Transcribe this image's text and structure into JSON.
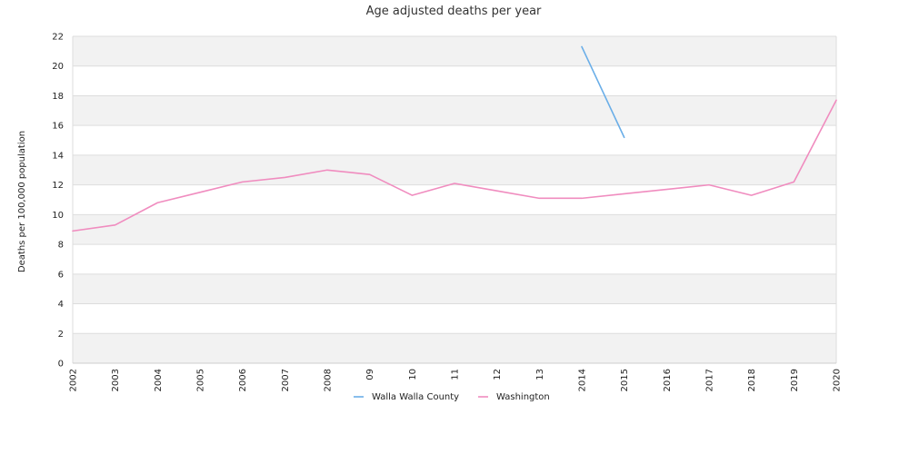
{
  "chart_data": {
    "type": "line",
    "title": "Age adjusted deaths per year",
    "ylabel": "Deaths per 100,000 population",
    "xlabel": "",
    "x": [
      "2002",
      "2003",
      "2004",
      "2005",
      "2006",
      "2007",
      "2008",
      "09",
      "10",
      "11",
      "12",
      "13",
      "2014",
      "2015",
      "2016",
      "2017",
      "2018",
      "2019",
      "2020"
    ],
    "yticks": [
      0,
      2,
      4,
      6,
      8,
      10,
      12,
      14,
      16,
      18,
      20,
      22
    ],
    "ylim": [
      0,
      22
    ],
    "grid": "horizontal bands",
    "legend_position": "bottom",
    "series": [
      {
        "name": "Walla Walla County",
        "color": "#6aaee8",
        "values": [
          null,
          null,
          null,
          null,
          null,
          null,
          null,
          null,
          null,
          null,
          null,
          null,
          21.3,
          15.2,
          null,
          null,
          null,
          null,
          null
        ]
      },
      {
        "name": "Washington",
        "color": "#f08cbf",
        "values": [
          8.9,
          9.3,
          10.8,
          11.5,
          12.2,
          12.5,
          13.0,
          12.7,
          11.3,
          12.1,
          11.6,
          11.1,
          11.1,
          11.4,
          11.7,
          12.0,
          11.3,
          12.2,
          17.7
        ]
      }
    ]
  }
}
